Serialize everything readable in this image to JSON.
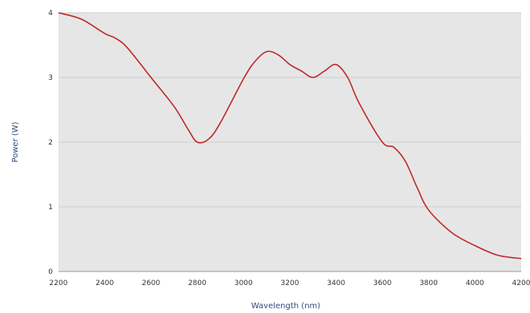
{
  "chart_data": {
    "type": "line",
    "title": "",
    "xlabel": "Wavelength (nm)",
    "ylabel": "Power (W)",
    "xlim": [
      2200,
      4200
    ],
    "ylim": [
      0,
      4
    ],
    "x_ticks": [
      2200,
      2400,
      2600,
      2800,
      3000,
      3200,
      3400,
      3600,
      3800,
      4000,
      4200
    ],
    "y_ticks": [
      0,
      1,
      2,
      3,
      4
    ],
    "grid": "horizontal",
    "legend": "none",
    "colors": {
      "line": "#c0292b",
      "plot_bg": "#e6e6e6",
      "grid": "#cfcfcf",
      "label": "#2f4a7a"
    },
    "series": [
      {
        "x": [
          2200,
          2300,
          2400,
          2450,
          2500,
          2600,
          2700,
          2760,
          2800,
          2850,
          2900,
          3000,
          3050,
          3100,
          3150,
          3200,
          3250,
          3300,
          3350,
          3400,
          3450,
          3500,
          3600,
          3650,
          3700,
          3750,
          3800,
          3900,
          4000,
          4100,
          4200
        ],
        "y": [
          4.0,
          3.9,
          3.68,
          3.6,
          3.45,
          3.0,
          2.55,
          2.2,
          2.0,
          2.05,
          2.3,
          2.98,
          3.25,
          3.4,
          3.35,
          3.2,
          3.1,
          3.0,
          3.1,
          3.2,
          3.0,
          2.6,
          2.0,
          1.92,
          1.7,
          1.3,
          0.95,
          0.6,
          0.4,
          0.25,
          0.2
        ]
      }
    ]
  }
}
